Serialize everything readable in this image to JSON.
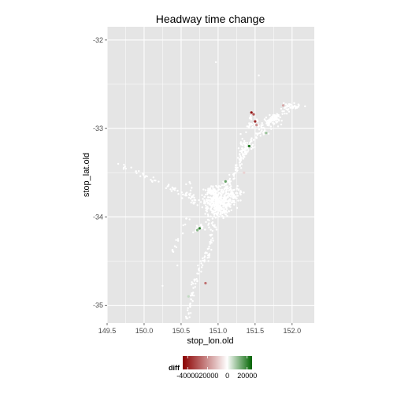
{
  "chart_data": {
    "type": "scatter",
    "title": "Headway time change",
    "xlabel": "stop_lon.old",
    "ylabel": "stop_lat.old",
    "xlim": [
      149.5,
      152.3
    ],
    "ylim": [
      -35.2,
      -31.85
    ],
    "x_ticks": [
      149.5,
      150.0,
      150.5,
      151.0,
      151.5,
      152.0
    ],
    "y_ticks": [
      -32,
      -33,
      -34,
      -35
    ],
    "x_tick_labels": [
      "149.5",
      "150.0",
      "150.5",
      "151.0",
      "151.5",
      "152.0"
    ],
    "y_tick_labels": [
      "-32",
      "-33",
      "-34",
      "-35"
    ],
    "grid": true,
    "panel_color": "#e5e5e5",
    "gridline_color": "#ffffff",
    "base_point_color": "#ffffff",
    "color_scale": {
      "low_color": "#8b0000",
      "mid_color": "#ffffff",
      "high_color": "#006400",
      "range": [
        -45000,
        25000
      ]
    },
    "legend": {
      "title": "diff",
      "position": "bottom",
      "tick_values": [
        -40000,
        -20000,
        0,
        20000
      ],
      "tick_labels": [
        "-40000",
        "-20000",
        "0",
        "20000"
      ]
    },
    "clusters": [
      {
        "x": 151.0,
        "y": -33.85,
        "sx": 0.09,
        "sy": 0.07,
        "n": 360
      },
      {
        "x": 151.2,
        "y": -33.75,
        "sx": 0.06,
        "sy": 0.05,
        "n": 60
      },
      {
        "x": 150.9,
        "y": -33.72,
        "sx": 0.05,
        "sy": 0.04,
        "n": 40
      },
      {
        "x": 151.35,
        "y": -33.2,
        "sx": 0.03,
        "sy": 0.06,
        "n": 30
      },
      {
        "x": 151.75,
        "y": -32.9,
        "sx": 0.05,
        "sy": 0.03,
        "n": 45
      },
      {
        "x": 152.0,
        "y": -32.75,
        "sx": 0.07,
        "sy": 0.02,
        "n": 30
      },
      {
        "x": 151.5,
        "y": -32.95,
        "sx": 0.04,
        "sy": 0.03,
        "n": 20
      }
    ],
    "paths": [
      {
        "from": [
          151.05,
          -33.8
        ],
        "to": [
          151.4,
          -33.2
        ],
        "n": 70,
        "jitter": 0.02
      },
      {
        "from": [
          151.3,
          -33.3
        ],
        "to": [
          151.75,
          -32.9
        ],
        "n": 60,
        "jitter": 0.025
      },
      {
        "from": [
          151.6,
          -32.95
        ],
        "to": [
          152.1,
          -32.72
        ],
        "n": 45,
        "jitter": 0.02
      },
      {
        "from": [
          151.4,
          -33.0
        ],
        "to": [
          151.45,
          -32.85
        ],
        "n": 15,
        "jitter": 0.01
      },
      {
        "from": [
          150.85,
          -33.85
        ],
        "to": [
          150.3,
          -33.65
        ],
        "n": 35,
        "jitter": 0.02
      },
      {
        "from": [
          150.3,
          -33.65
        ],
        "to": [
          149.7,
          -33.42
        ],
        "n": 25,
        "jitter": 0.015
      },
      {
        "from": [
          150.7,
          -33.9
        ],
        "to": [
          150.6,
          -33.6
        ],
        "n": 20,
        "jitter": 0.02
      },
      {
        "from": [
          150.95,
          -34.05
        ],
        "to": [
          150.7,
          -34.15
        ],
        "n": 25,
        "jitter": 0.02
      },
      {
        "from": [
          150.95,
          -34.1
        ],
        "to": [
          150.85,
          -34.5
        ],
        "n": 30,
        "jitter": 0.02
      },
      {
        "from": [
          150.85,
          -34.4
        ],
        "to": [
          150.65,
          -34.75
        ],
        "n": 25,
        "jitter": 0.02
      },
      {
        "from": [
          150.72,
          -34.65
        ],
        "to": [
          150.58,
          -35.15
        ],
        "n": 35,
        "jitter": 0.015
      },
      {
        "from": [
          150.6,
          -34.0
        ],
        "to": [
          150.35,
          -34.45
        ],
        "n": 15,
        "jitter": 0.015
      },
      {
        "from": [
          151.0,
          -33.75
        ],
        "to": [
          151.15,
          -33.55
        ],
        "n": 20,
        "jitter": 0.02
      }
    ],
    "outliers": [
      {
        "x": 150.25,
        "y": -34.78
      },
      {
        "x": 151.55,
        "y": -32.4
      },
      {
        "x": 150.97,
        "y": -32.25
      },
      {
        "x": 149.65,
        "y": -33.4
      },
      {
        "x": 150.45,
        "y": -34.55
      }
    ],
    "colored_points": [
      {
        "x": 151.45,
        "y": -32.82,
        "diff": -42000
      },
      {
        "x": 151.48,
        "y": -32.84,
        "diff": -30000
      },
      {
        "x": 151.5,
        "y": -32.92,
        "diff": -38000
      },
      {
        "x": 151.52,
        "y": -32.96,
        "diff": -20000
      },
      {
        "x": 151.88,
        "y": -32.74,
        "diff": -15000
      },
      {
        "x": 151.42,
        "y": -33.2,
        "diff": 22000
      },
      {
        "x": 151.65,
        "y": -33.05,
        "diff": 10000
      },
      {
        "x": 151.35,
        "y": -33.5,
        "diff": -8000
      },
      {
        "x": 151.1,
        "y": -33.6,
        "diff": 15000
      },
      {
        "x": 150.75,
        "y": -34.13,
        "diff": 20000
      },
      {
        "x": 150.72,
        "y": -34.15,
        "diff": 12000
      },
      {
        "x": 150.83,
        "y": -34.75,
        "diff": -25000
      },
      {
        "x": 150.6,
        "y": -34.9,
        "diff": 6000
      }
    ]
  }
}
